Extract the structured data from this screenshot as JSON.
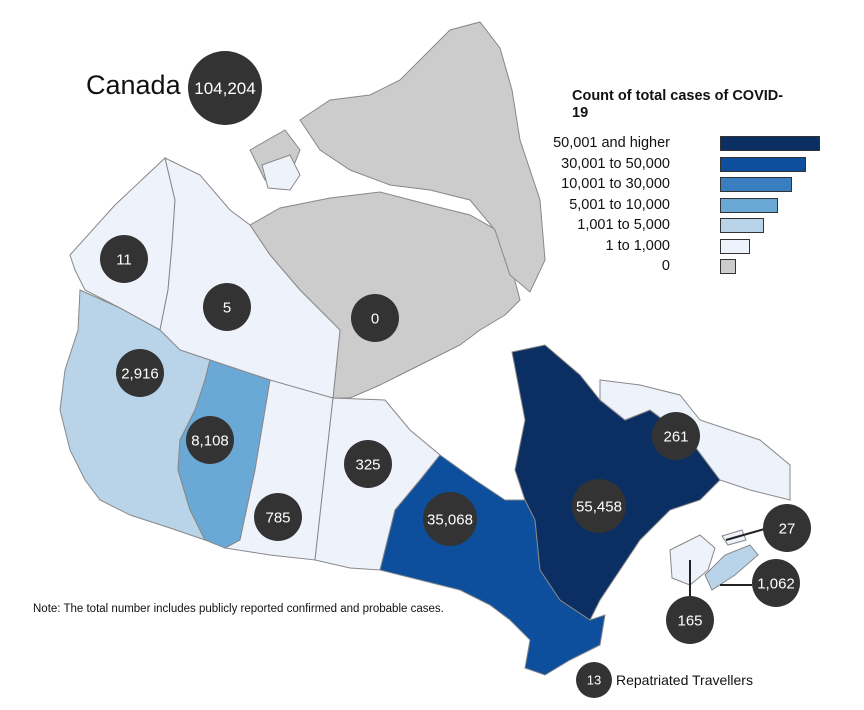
{
  "title": "Canada",
  "national_total": "104,204",
  "legend": {
    "title": "Count of total cases of COVID-19",
    "items": [
      {
        "label": "50,001 and higher",
        "color": "#0b2f63"
      },
      {
        "label": "30,001 to 50,000",
        "color": "#0d4f9c"
      },
      {
        "label": "10,001 to 30,000",
        "color": "#3a7ec2"
      },
      {
        "label": "5,001 to 10,000",
        "color": "#6aa8d6"
      },
      {
        "label": "1,001 to 5,000",
        "color": "#b9d4e8"
      },
      {
        "label": "1 to 1,000",
        "color": "#eef2fb"
      },
      {
        "label": "0",
        "color": "#cccccc"
      }
    ]
  },
  "regions": [
    {
      "code": "YT",
      "cases": "11",
      "category": "1 to 1,000"
    },
    {
      "code": "NT",
      "cases": "5",
      "category": "1 to 1,000"
    },
    {
      "code": "NU",
      "cases": "0",
      "category": "0"
    },
    {
      "code": "BC",
      "cases": "2,916",
      "category": "1,001 to 5,000"
    },
    {
      "code": "AB",
      "cases": "8,108",
      "category": "5,001 to 10,000"
    },
    {
      "code": "SK",
      "cases": "785",
      "category": "1 to 1,000"
    },
    {
      "code": "MB",
      "cases": "325",
      "category": "1 to 1,000"
    },
    {
      "code": "ON",
      "cases": "35,068",
      "category": "30,001 to 50,000"
    },
    {
      "code": "QC",
      "cases": "55,458",
      "category": "50,001 and higher"
    },
    {
      "code": "NL",
      "cases": "261",
      "category": "1 to 1,000"
    },
    {
      "code": "PE",
      "cases": "27",
      "category": "1 to 1,000"
    },
    {
      "code": "NS",
      "cases": "1,062",
      "category": "1,001 to 5,000"
    },
    {
      "code": "NB",
      "cases": "165",
      "category": "1 to 1,000"
    }
  ],
  "repatriated": {
    "cases": "13",
    "label": "Repatriated Travellers"
  },
  "note": "Note: The total number includes publicly reported confirmed and probable cases.",
  "bubble_color": "#333333"
}
